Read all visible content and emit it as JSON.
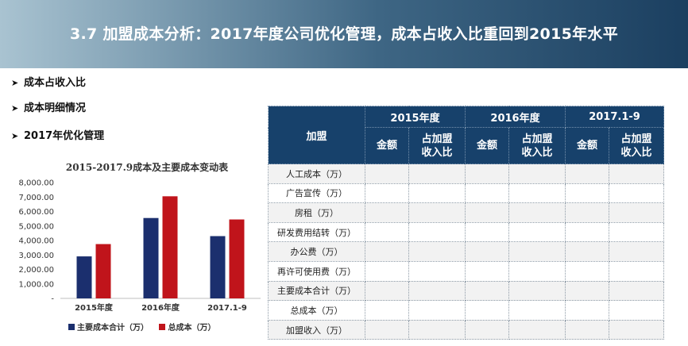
{
  "header": {
    "title": "3.7  加盟成本分析：2017年度公司优化管理，成本占收入比重回到2015年水平"
  },
  "bullets": [
    {
      "label": "成本占收入比"
    },
    {
      "label": "成本明细情况"
    },
    {
      "label": "2017年优化管理"
    }
  ],
  "chart_data": {
    "type": "bar",
    "title": "2015-2017.9成本及主要成本变动表",
    "categories": [
      "2015年度",
      "2016年度",
      "2017.1-9"
    ],
    "series": [
      {
        "name": "主要成本合计（万）",
        "color": "#1b2f6e",
        "values": [
          2900,
          5550,
          4300
        ]
      },
      {
        "name": "总成本（万）",
        "color": "#c0141b",
        "values": [
          3750,
          7050,
          5450
        ]
      }
    ],
    "yticks": [
      "-",
      "1,000.00",
      "2,000.00",
      "3,000.00",
      "4,000.00",
      "5,000.00",
      "6,000.00",
      "7,000.00",
      "8,000.00"
    ],
    "ylim": [
      0,
      8000
    ],
    "xlabel": "",
    "ylabel": "",
    "legend": "bottom"
  },
  "table": {
    "corner": "加盟",
    "years": [
      "2015年度",
      "2016年度",
      "2017.1-9"
    ],
    "sub_amount": "金额",
    "sub_ratio_line1": "占加盟",
    "sub_ratio_line2": "收入比",
    "rows": [
      {
        "label": "人工成本（万）"
      },
      {
        "label": "广告宣传（万）"
      },
      {
        "label": "房租（万）"
      },
      {
        "label": "研发费用结转（万）"
      },
      {
        "label": "办公费（万）"
      },
      {
        "label": "再许可使用费（万）"
      },
      {
        "label": "主要成本合计（万）"
      },
      {
        "label": "总成本（万）"
      },
      {
        "label": "加盟收入（万）"
      }
    ]
  }
}
